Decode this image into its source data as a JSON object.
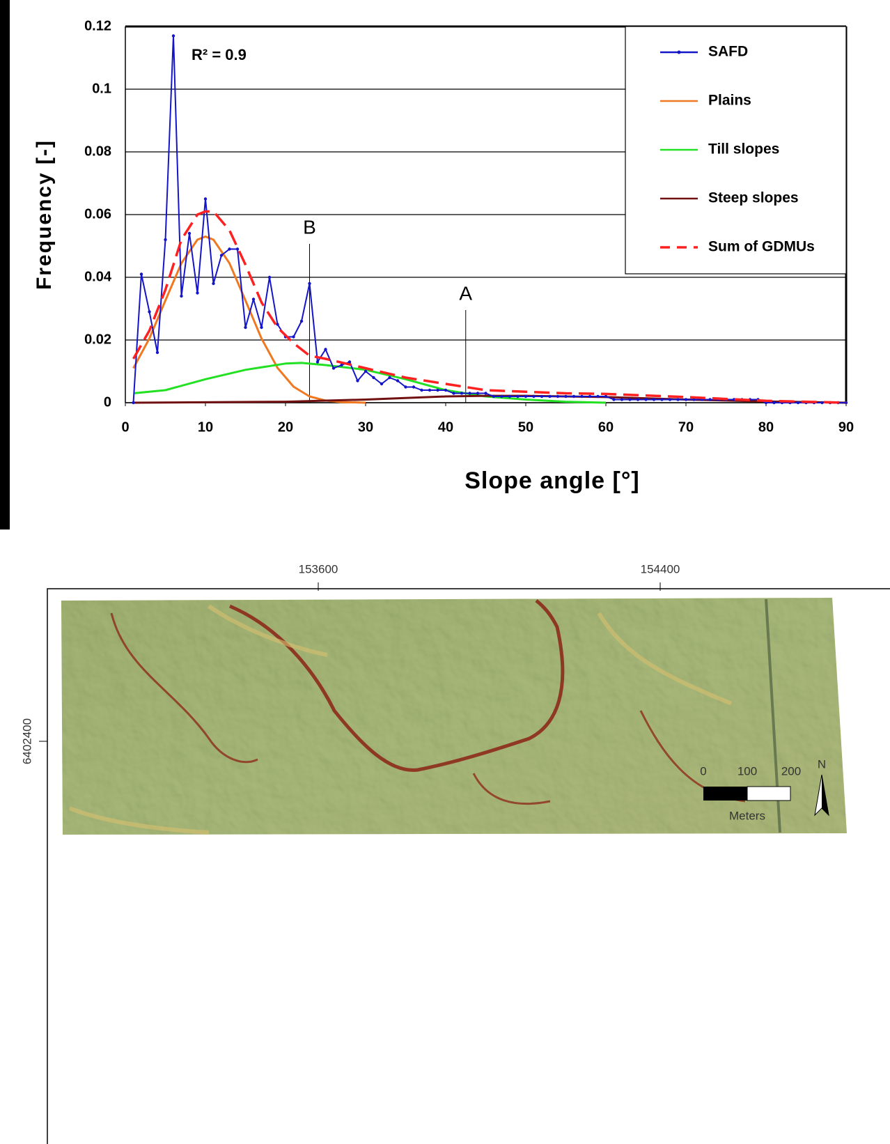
{
  "chart_data": {
    "type": "line",
    "xlabel": "Slope angle [°]",
    "ylabel": "Frequency [-]",
    "xlim": [
      0,
      90
    ],
    "xticks": [
      0,
      10,
      20,
      30,
      40,
      50,
      60,
      70,
      80,
      90
    ],
    "ylim": [
      0,
      0.12
    ],
    "yticks": [
      0,
      0.02,
      0.04,
      0.06,
      0.08,
      0.1,
      0.12
    ],
    "grid": true,
    "legend": "upper right",
    "annotations": [
      {
        "text": "R² = 0.9"
      },
      {
        "text": "B",
        "x": 23
      },
      {
        "text": "A",
        "x": 42.5
      }
    ],
    "series": [
      {
        "name": "SAFD",
        "color": "#1414c8",
        "marker": true,
        "x": [
          1,
          2,
          3,
          4,
          5,
          6,
          7,
          8,
          9,
          10,
          11,
          12,
          13,
          14,
          15,
          16,
          17,
          18,
          19,
          20,
          21,
          22,
          23,
          24,
          25,
          26,
          27,
          28,
          29,
          30,
          31,
          32,
          33,
          34,
          35,
          36,
          37,
          38,
          39,
          40,
          41,
          42,
          43,
          44,
          45,
          46,
          47,
          48,
          49,
          50,
          51,
          52,
          53,
          54,
          55,
          56,
          57,
          58,
          59,
          60,
          61,
          62,
          63,
          64,
          65,
          66,
          67,
          68,
          69,
          70,
          71,
          72,
          73,
          74,
          75,
          76,
          77,
          78,
          79,
          80,
          81,
          82,
          83,
          84,
          85,
          86,
          87,
          88,
          89,
          90
        ],
        "values": [
          0,
          0.041,
          0.029,
          0.016,
          0.052,
          0.117,
          0.034,
          0.054,
          0.035,
          0.065,
          0.038,
          0.047,
          0.049,
          0.049,
          0.024,
          0.033,
          0.024,
          0.04,
          0.025,
          0.021,
          0.021,
          0.026,
          0.038,
          0.013,
          0.017,
          0.011,
          0.012,
          0.013,
          0.007,
          0.01,
          0.008,
          0.006,
          0.008,
          0.007,
          0.005,
          0.005,
          0.004,
          0.004,
          0.004,
          0.004,
          0.003,
          0.003,
          0.003,
          0.003,
          0.003,
          0.002,
          0.002,
          0.002,
          0.002,
          0.002,
          0.002,
          0.002,
          0.002,
          0.002,
          0.002,
          0.002,
          0.002,
          0.002,
          0.002,
          0.002,
          0.001,
          0.001,
          0.001,
          0.001,
          0.001,
          0.001,
          0.001,
          0.001,
          0.001,
          0.001,
          0.001,
          0.001,
          0.001,
          0.001,
          0.001,
          0.001,
          0.001,
          0.001,
          0.001,
          0,
          0,
          0,
          0,
          0,
          0,
          0,
          0,
          0,
          0,
          0
        ]
      },
      {
        "name": "Plains",
        "color": "#f07820",
        "x": [
          1,
          3,
          5,
          7,
          9,
          10,
          11,
          13,
          15,
          17,
          19,
          21,
          23,
          25,
          27,
          30
        ],
        "values": [
          0.011,
          0.0205,
          0.0326,
          0.0445,
          0.052,
          0.053,
          0.052,
          0.0445,
          0.0326,
          0.0205,
          0.0111,
          0.0051,
          0.002,
          0.0007,
          0.0002,
          0
        ]
      },
      {
        "name": "Till slopes",
        "color": "#22e022",
        "x": [
          1,
          5,
          10,
          15,
          20,
          22,
          25,
          30,
          35,
          40,
          45,
          50,
          55,
          60
        ],
        "values": [
          0.003,
          0.004,
          0.0075,
          0.0105,
          0.0125,
          0.0127,
          0.012,
          0.0105,
          0.0075,
          0.004,
          0.002,
          0.001,
          0.0003,
          0
        ]
      },
      {
        "name": "Steep slopes",
        "color": "#701010",
        "x": [
          1,
          20,
          30,
          40,
          45,
          50,
          60,
          70,
          80,
          90
        ],
        "values": [
          0,
          0.0003,
          0.001,
          0.002,
          0.0022,
          0.0022,
          0.0018,
          0.001,
          0.0004,
          0
        ]
      },
      {
        "name": "Sum of GDMUs",
        "color": "#ff2020",
        "dashed": true,
        "x": [
          1,
          3,
          5,
          7,
          9,
          10,
          11,
          13,
          15,
          17,
          19,
          21,
          23,
          25,
          30,
          35,
          40,
          45,
          50,
          55,
          60,
          70,
          80,
          90
        ],
        "values": [
          0.014,
          0.023,
          0.036,
          0.052,
          0.06,
          0.061,
          0.061,
          0.055,
          0.044,
          0.032,
          0.024,
          0.019,
          0.015,
          0.014,
          0.011,
          0.008,
          0.006,
          0.004,
          0.0035,
          0.003,
          0.0028,
          0.0018,
          0.0006,
          0
        ]
      }
    ]
  },
  "map": {
    "x_ticks": [
      "153600",
      "154400"
    ],
    "y_ticks": [
      "6402400"
    ],
    "scale_labels": [
      "0",
      "100",
      "200"
    ],
    "scale_unit": "Meters",
    "north": "N"
  }
}
